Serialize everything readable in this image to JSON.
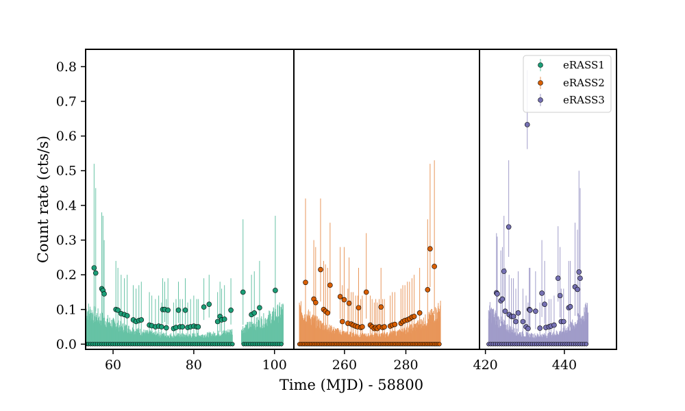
{
  "chart_data": {
    "type": "scatter",
    "xlabel": "Time (MJD) - 58800",
    "ylabel": "Count rate (cts/s)",
    "ylim": [
      -0.015,
      0.85
    ],
    "yticks": [
      0.0,
      0.1,
      0.2,
      0.3,
      0.4,
      0.5,
      0.6,
      0.7,
      0.8
    ],
    "ytick_labels": [
      "0.0",
      "0.1",
      "0.2",
      "0.3",
      "0.4",
      "0.5",
      "0.6",
      "0.7",
      "0.8"
    ],
    "legend_position": "top-right",
    "panels": [
      {
        "xlim": [
          53.2,
          104.8
        ],
        "xticks": [
          60,
          80,
          100
        ],
        "xtick_labels": [
          "60",
          "80",
          "100"
        ]
      },
      {
        "xlim": [
          243.5,
          304.0
        ],
        "xticks": [
          260,
          280
        ],
        "xtick_labels": [
          "260",
          "280"
        ]
      },
      {
        "xlim": [
          418.5,
          453.2
        ],
        "xticks": [
          420,
          440
        ],
        "xtick_labels": [
          "420",
          "440"
        ]
      }
    ],
    "series": [
      {
        "name": "eRASS1",
        "color": "#1b9e77",
        "band_color": "#66c2a5",
        "panel": 0,
        "detections": [
          {
            "x": 55.3,
            "y": 0.22,
            "yerr_hi": 0.52
          },
          {
            "x": 55.7,
            "y": 0.205,
            "yerr_hi": 0.45
          },
          {
            "x": 57.2,
            "y": 0.16,
            "yerr_hi": 0.38
          },
          {
            "x": 57.5,
            "y": 0.155,
            "yerr_hi": 0.37
          },
          {
            "x": 57.8,
            "y": 0.145,
            "yerr_hi": 0.3
          },
          {
            "x": 60.7,
            "y": 0.1,
            "yerr_hi": 0.24
          },
          {
            "x": 61.2,
            "y": 0.098,
            "yerr_hi": 0.22
          },
          {
            "x": 62.0,
            "y": 0.088,
            "yerr_hi": 0.2
          },
          {
            "x": 62.8,
            "y": 0.085,
            "yerr_hi": 0.19
          },
          {
            "x": 63.5,
            "y": 0.082,
            "yerr_hi": 0.2
          },
          {
            "x": 65.0,
            "y": 0.07,
            "yerr_hi": 0.17
          },
          {
            "x": 65.7,
            "y": 0.065,
            "yerr_hi": 0.16
          },
          {
            "x": 66.4,
            "y": 0.068,
            "yerr_hi": 0.17
          },
          {
            "x": 67.0,
            "y": 0.07,
            "yerr_hi": 0.18
          },
          {
            "x": 69.0,
            "y": 0.055,
            "yerr_hi": 0.15
          },
          {
            "x": 69.6,
            "y": 0.053,
            "yerr_hi": 0.14
          },
          {
            "x": 70.5,
            "y": 0.05,
            "yerr_hi": 0.13
          },
          {
            "x": 71.3,
            "y": 0.052,
            "yerr_hi": 0.14
          },
          {
            "x": 72.0,
            "y": 0.05,
            "yerr_hi": 0.12
          },
          {
            "x": 72.3,
            "y": 0.1,
            "yerr_hi": 0.19
          },
          {
            "x": 72.8,
            "y": 0.1,
            "yerr_hi": 0.18
          },
          {
            "x": 73.2,
            "y": 0.047,
            "yerr_hi": 0.13
          },
          {
            "x": 73.6,
            "y": 0.098,
            "yerr_hi": 0.19
          },
          {
            "x": 75.0,
            "y": 0.045,
            "yerr_hi": 0.12
          },
          {
            "x": 75.6,
            "y": 0.048,
            "yerr_hi": 0.13
          },
          {
            "x": 76.2,
            "y": 0.098,
            "yerr_hi": 0.18
          },
          {
            "x": 76.6,
            "y": 0.05,
            "yerr_hi": 0.13
          },
          {
            "x": 77.2,
            "y": 0.05,
            "yerr_hi": 0.13
          },
          {
            "x": 77.9,
            "y": 0.098,
            "yerr_hi": 0.19
          },
          {
            "x": 78.5,
            "y": 0.048,
            "yerr_hi": 0.12
          },
          {
            "x": 79.2,
            "y": 0.05,
            "yerr_hi": 0.13
          },
          {
            "x": 80.0,
            "y": 0.052,
            "yerr_hi": 0.14
          },
          {
            "x": 80.7,
            "y": 0.05,
            "yerr_hi": 0.13
          },
          {
            "x": 81.1,
            "y": 0.05,
            "yerr_hi": 0.13
          },
          {
            "x": 82.5,
            "y": 0.107,
            "yerr_hi": 0.19
          },
          {
            "x": 83.8,
            "y": 0.115,
            "yerr_hi": 0.2
          },
          {
            "x": 85.9,
            "y": 0.065,
            "yerr_hi": 0.15
          },
          {
            "x": 86.5,
            "y": 0.08,
            "yerr_hi": 0.18
          },
          {
            "x": 86.9,
            "y": 0.07,
            "yerr_hi": 0.16
          },
          {
            "x": 87.6,
            "y": 0.072,
            "yerr_hi": 0.17
          },
          {
            "x": 89.2,
            "y": 0.098,
            "yerr_hi": 0.19
          },
          {
            "x": 92.2,
            "y": 0.15,
            "yerr_hi": 0.36
          },
          {
            "x": 94.3,
            "y": 0.085,
            "yerr_hi": 0.2
          },
          {
            "x": 95.0,
            "y": 0.09,
            "yerr_hi": 0.21
          },
          {
            "x": 96.3,
            "y": 0.105,
            "yerr_hi": 0.24
          },
          {
            "x": 100.2,
            "y": 0.155,
            "yerr_hi": 0.37
          }
        ]
      },
      {
        "name": "eRASS2",
        "color": "#d95f02",
        "band_color": "#e8965a",
        "panel": 1,
        "detections": [
          {
            "x": 247.3,
            "y": 0.178,
            "yerr_hi": 0.42
          },
          {
            "x": 250.0,
            "y": 0.13,
            "yerr_hi": 0.3
          },
          {
            "x": 250.6,
            "y": 0.12,
            "yerr_hi": 0.28
          },
          {
            "x": 252.2,
            "y": 0.215,
            "yerr_hi": 0.42
          },
          {
            "x": 253.2,
            "y": 0.1,
            "yerr_hi": 0.24
          },
          {
            "x": 253.8,
            "y": 0.095,
            "yerr_hi": 0.23
          },
          {
            "x": 254.5,
            "y": 0.09,
            "yerr_hi": 0.22
          },
          {
            "x": 255.3,
            "y": 0.17,
            "yerr_hi": 0.35
          },
          {
            "x": 258.6,
            "y": 0.137,
            "yerr_hi": 0.28
          },
          {
            "x": 259.3,
            "y": 0.065,
            "yerr_hi": 0.17
          },
          {
            "x": 259.9,
            "y": 0.128,
            "yerr_hi": 0.28
          },
          {
            "x": 261.1,
            "y": 0.06,
            "yerr_hi": 0.16
          },
          {
            "x": 261.5,
            "y": 0.118,
            "yerr_hi": 0.25
          },
          {
            "x": 262.2,
            "y": 0.058,
            "yerr_hi": 0.15
          },
          {
            "x": 262.8,
            "y": 0.055,
            "yerr_hi": 0.15
          },
          {
            "x": 263.6,
            "y": 0.052,
            "yerr_hi": 0.14
          },
          {
            "x": 264.3,
            "y": 0.05,
            "yerr_hi": 0.14
          },
          {
            "x": 264.6,
            "y": 0.105,
            "yerr_hi": 0.22
          },
          {
            "x": 265.3,
            "y": 0.048,
            "yerr_hi": 0.13
          },
          {
            "x": 265.8,
            "y": 0.05,
            "yerr_hi": 0.14
          },
          {
            "x": 267.1,
            "y": 0.15,
            "yerr_hi": 0.32
          },
          {
            "x": 268.4,
            "y": 0.055,
            "yerr_hi": 0.14
          },
          {
            "x": 269.0,
            "y": 0.05,
            "yerr_hi": 0.13
          },
          {
            "x": 269.7,
            "y": 0.045,
            "yerr_hi": 0.12
          },
          {
            "x": 270.2,
            "y": 0.048,
            "yerr_hi": 0.13
          },
          {
            "x": 270.7,
            "y": 0.045,
            "yerr_hi": 0.12
          },
          {
            "x": 271.3,
            "y": 0.05,
            "yerr_hi": 0.13
          },
          {
            "x": 271.9,
            "y": 0.107,
            "yerr_hi": 0.22
          },
          {
            "x": 272.4,
            "y": 0.048,
            "yerr_hi": 0.13
          },
          {
            "x": 273.0,
            "y": 0.05,
            "yerr_hi": 0.13
          },
          {
            "x": 274.9,
            "y": 0.052,
            "yerr_hi": 0.14
          },
          {
            "x": 275.6,
            "y": 0.055,
            "yerr_hi": 0.15
          },
          {
            "x": 276.4,
            "y": 0.057,
            "yerr_hi": 0.15
          },
          {
            "x": 278.4,
            "y": 0.06,
            "yerr_hi": 0.16
          },
          {
            "x": 279.0,
            "y": 0.065,
            "yerr_hi": 0.17
          },
          {
            "x": 279.7,
            "y": 0.068,
            "yerr_hi": 0.17
          },
          {
            "x": 280.5,
            "y": 0.07,
            "yerr_hi": 0.18
          },
          {
            "x": 281.2,
            "y": 0.073,
            "yerr_hi": 0.18
          },
          {
            "x": 282.0,
            "y": 0.078,
            "yerr_hi": 0.19
          },
          {
            "x": 282.7,
            "y": 0.08,
            "yerr_hi": 0.2
          },
          {
            "x": 284.5,
            "y": 0.09,
            "yerr_hi": 0.22
          },
          {
            "x": 287.1,
            "y": 0.157,
            "yerr_hi": 0.36
          },
          {
            "x": 287.9,
            "y": 0.275,
            "yerr_hi": 0.52
          },
          {
            "x": 289.3,
            "y": 0.224,
            "yerr_hi": 0.53
          }
        ]
      },
      {
        "name": "eRASS3",
        "color": "#7570b3",
        "band_color": "#a09cc9",
        "panel": 2,
        "detections": [
          {
            "x": 422.8,
            "y": 0.148,
            "yerr_hi": 0.32
          },
          {
            "x": 423.0,
            "y": 0.145,
            "yerr_hi": 0.31
          },
          {
            "x": 423.9,
            "y": 0.125,
            "yerr_hi": 0.27
          },
          {
            "x": 424.3,
            "y": 0.13,
            "yerr_hi": 0.28
          },
          {
            "x": 424.7,
            "y": 0.21,
            "yerr_hi": 0.37
          },
          {
            "x": 425.0,
            "y": 0.095,
            "yerr_hi": 0.22
          },
          {
            "x": 425.9,
            "y": 0.338,
            "yerr_hi": 0.53
          },
          {
            "x": 426.0,
            "y": 0.085,
            "yerr_hi": 0.2
          },
          {
            "x": 426.6,
            "y": 0.08,
            "yerr_hi": 0.19
          },
          {
            "x": 427.1,
            "y": 0.08,
            "yerr_hi": 0.19
          },
          {
            "x": 427.7,
            "y": 0.065,
            "yerr_hi": 0.16
          },
          {
            "x": 428.3,
            "y": 0.09,
            "yerr_hi": 0.21
          },
          {
            "x": 429.5,
            "y": 0.065,
            "yerr_hi": 0.16
          },
          {
            "x": 430.3,
            "y": 0.05,
            "yerr_hi": 0.14
          },
          {
            "x": 430.6,
            "y": 0.633,
            "yerr_hi": 0.79
          },
          {
            "x": 430.8,
            "y": 0.045,
            "yerr_hi": 0.12
          },
          {
            "x": 431.1,
            "y": 0.1,
            "yerr_hi": 0.22
          },
          {
            "x": 431.3,
            "y": 0.098,
            "yerr_hi": 0.22
          },
          {
            "x": 432.7,
            "y": 0.095,
            "yerr_hi": 0.21
          },
          {
            "x": 433.8,
            "y": 0.046,
            "yerr_hi": 0.12
          },
          {
            "x": 434.3,
            "y": 0.147,
            "yerr_hi": 0.3
          },
          {
            "x": 435.0,
            "y": 0.115,
            "yerr_hi": 0.24
          },
          {
            "x": 435.3,
            "y": 0.048,
            "yerr_hi": 0.12
          },
          {
            "x": 436.1,
            "y": 0.05,
            "yerr_hi": 0.13
          },
          {
            "x": 436.6,
            "y": 0.052,
            "yerr_hi": 0.13
          },
          {
            "x": 437.4,
            "y": 0.055,
            "yerr_hi": 0.14
          },
          {
            "x": 438.4,
            "y": 0.19,
            "yerr_hi": 0.34
          },
          {
            "x": 438.9,
            "y": 0.14,
            "yerr_hi": 0.28
          },
          {
            "x": 439.2,
            "y": 0.065,
            "yerr_hi": 0.16
          },
          {
            "x": 439.8,
            "y": 0.065,
            "yerr_hi": 0.16
          },
          {
            "x": 441.1,
            "y": 0.105,
            "yerr_hi": 0.24
          },
          {
            "x": 441.5,
            "y": 0.108,
            "yerr_hi": 0.24
          },
          {
            "x": 442.7,
            "y": 0.165,
            "yerr_hi": 0.35
          },
          {
            "x": 443.3,
            "y": 0.158,
            "yerr_hi": 0.33
          },
          {
            "x": 443.7,
            "y": 0.208,
            "yerr_hi": 0.5
          },
          {
            "x": 444.0,
            "y": 0.19,
            "yerr_hi": 0.45
          }
        ]
      }
    ]
  },
  "legend": {
    "items": [
      {
        "label": "eRASS1",
        "color": "#1b9e77",
        "band_color": "#66c2a5"
      },
      {
        "label": "eRASS2",
        "color": "#d95f02",
        "band_color": "#e8965a"
      },
      {
        "label": "eRASS3",
        "color": "#7570b3",
        "band_color": "#a09cc9"
      }
    ]
  }
}
